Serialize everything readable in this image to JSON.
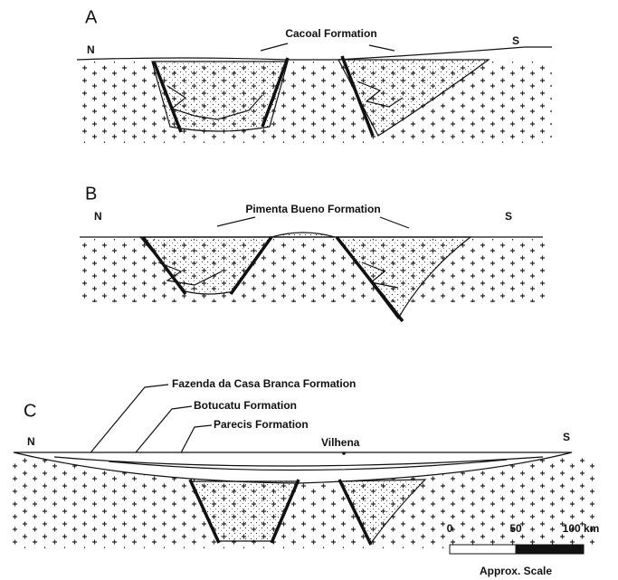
{
  "panels": [
    {
      "label": "A",
      "north": "N",
      "south": "S",
      "formations": [
        "Cacoal Formation"
      ]
    },
    {
      "label": "B",
      "north": "N",
      "south": "S",
      "formations": [
        "Pimenta Bueno Formation"
      ]
    },
    {
      "label": "C",
      "north": "N",
      "south": "S",
      "formations": [
        "Fazenda da Casa Branca Formation",
        "Botucatu Formation",
        "Parecis Formation"
      ],
      "place": "Vilhena"
    }
  ],
  "scale": {
    "ticks": [
      "0",
      "50",
      "100 km"
    ],
    "caption": "Approx. Scale"
  }
}
